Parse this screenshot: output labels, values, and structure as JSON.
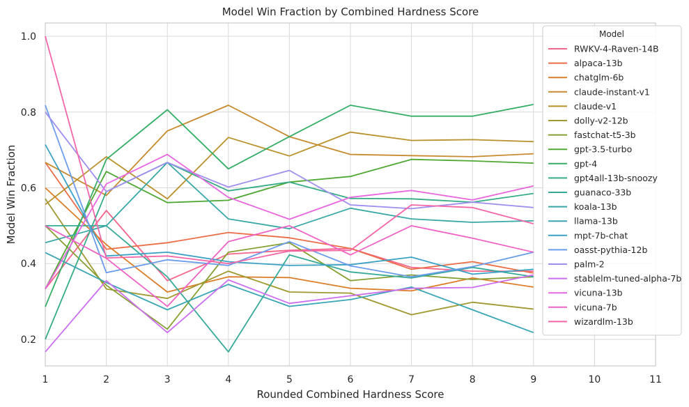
{
  "chart_data": {
    "type": "line",
    "title": "Model Win Fraction by Combined Hardness Score",
    "xlabel": "Rounded Combined Hardness Score",
    "ylabel": "Model Win Fraction",
    "x": [
      1,
      2,
      3,
      4,
      5,
      6,
      7,
      8,
      9,
      10,
      11
    ],
    "xlim": [
      1,
      11
    ],
    "ylim": [
      0.13,
      1.035
    ],
    "xticks": [
      "1",
      "2",
      "3",
      "4",
      "5",
      "6",
      "7",
      "8",
      "9",
      "10",
      "11"
    ],
    "yticks": [
      0.2,
      0.4,
      0.6,
      0.8,
      1.0
    ],
    "ytick_labels": [
      "0.2",
      "0.4",
      "0.6",
      "0.8",
      "1.0"
    ],
    "grid": true,
    "legend": {
      "title": "Model",
      "placement": "top-right"
    },
    "series": [
      {
        "name": "RWKV-4-Raven-14B",
        "color": "#f5648a",
        "values": [
          0.333,
          0.54,
          0.355,
          0.425,
          0.435,
          0.44,
          0.39,
          0.38,
          0.38,
          null,
          null
        ]
      },
      {
        "name": "alpaca-13b",
        "color": "#ec6d45",
        "values": [
          0.667,
          0.438,
          0.455,
          0.482,
          0.468,
          0.44,
          0.385,
          0.405,
          0.375,
          null,
          null
        ]
      },
      {
        "name": "chatglm-6b",
        "color": "#dc7d28",
        "values": [
          0.6,
          0.45,
          0.325,
          0.365,
          0.363,
          0.335,
          0.328,
          0.362,
          0.338,
          null,
          null
        ]
      },
      {
        "name": "claude-instant-v1",
        "color": "#c88a2e",
        "values": [
          0.667,
          0.58,
          0.75,
          0.818,
          0.735,
          0.688,
          0.685,
          0.682,
          0.69,
          null,
          null
        ]
      },
      {
        "name": "claude-v1",
        "color": "#b9912c",
        "values": [
          0.556,
          0.682,
          0.571,
          0.733,
          0.684,
          0.747,
          0.725,
          0.727,
          0.722,
          null,
          null
        ]
      },
      {
        "name": "dolly-v2-12b",
        "color": "#a09830",
        "values": [
          0.571,
          0.333,
          0.308,
          0.38,
          0.325,
          0.322,
          0.265,
          0.298,
          0.28,
          null,
          null
        ]
      },
      {
        "name": "fastchat-t5-3b",
        "color": "#869f32",
        "values": [
          0.5,
          0.343,
          0.227,
          0.43,
          0.455,
          0.355,
          0.37,
          0.358,
          0.365,
          null,
          null
        ]
      },
      {
        "name": "gpt-3.5-turbo",
        "color": "#4ea832",
        "values": [
          0.333,
          0.643,
          0.561,
          0.567,
          0.615,
          0.63,
          0.675,
          0.671,
          0.665,
          null,
          null
        ]
      },
      {
        "name": "gpt-4",
        "color": "#34ad65",
        "values": [
          0.286,
          0.675,
          0.806,
          0.65,
          0.735,
          0.818,
          0.789,
          0.789,
          0.82,
          null,
          null
        ]
      },
      {
        "name": "gpt4all-13b-snoozy",
        "color": "#35ac86",
        "values": [
          0.2,
          0.59,
          0.667,
          0.592,
          0.615,
          0.572,
          0.571,
          0.562,
          0.585,
          null,
          null
        ]
      },
      {
        "name": "guanaco-33b",
        "color": "#36aa98",
        "values": [
          0.5,
          0.5,
          0.365,
          0.167,
          0.423,
          0.378,
          0.362,
          0.39,
          0.365,
          null,
          null
        ]
      },
      {
        "name": "koala-13b",
        "color": "#38a8a6",
        "values": [
          0.455,
          0.5,
          0.667,
          0.518,
          0.492,
          0.546,
          0.518,
          0.509,
          0.513,
          null,
          null
        ]
      },
      {
        "name": "llama-13b",
        "color": "#39a5b5",
        "values": [
          0.429,
          0.35,
          0.278,
          0.345,
          0.287,
          0.305,
          0.338,
          0.278,
          0.218,
          null,
          null
        ]
      },
      {
        "name": "mpt-7b-chat",
        "color": "#3aa1c5",
        "values": [
          0.714,
          0.42,
          0.43,
          0.405,
          0.395,
          0.397,
          0.417,
          0.372,
          0.385,
          null,
          null
        ]
      },
      {
        "name": "oasst-pythia-12b",
        "color": "#6a9ceb",
        "values": [
          0.818,
          0.376,
          0.41,
          0.395,
          0.458,
          0.394,
          0.365,
          0.392,
          0.43,
          null,
          null
        ]
      },
      {
        "name": "palm-2",
        "color": "#a08df0",
        "values": [
          0.8,
          0.59,
          0.667,
          0.602,
          0.646,
          0.555,
          0.545,
          0.562,
          0.548,
          null,
          null
        ]
      },
      {
        "name": "stablelm-tuned-alpha-7b",
        "color": "#cc6eef",
        "values": [
          0.167,
          0.355,
          0.218,
          0.357,
          0.295,
          0.315,
          0.335,
          0.337,
          0.37,
          null,
          null
        ]
      },
      {
        "name": "vicuna-13b",
        "color": "#e866df",
        "values": [
          0.333,
          0.61,
          0.688,
          0.575,
          0.517,
          0.575,
          0.593,
          0.568,
          0.605,
          null,
          null
        ]
      },
      {
        "name": "vicuna-7b",
        "color": "#f062c6",
        "values": [
          0.5,
          0.414,
          0.287,
          0.458,
          0.5,
          0.423,
          0.5,
          0.467,
          0.43,
          null,
          null
        ]
      },
      {
        "name": "wizardlm-13b",
        "color": "#f466a8",
        "values": [
          1.0,
          0.415,
          0.42,
          0.4,
          0.433,
          0.435,
          0.555,
          0.548,
          0.505,
          null,
          null
        ]
      }
    ]
  }
}
